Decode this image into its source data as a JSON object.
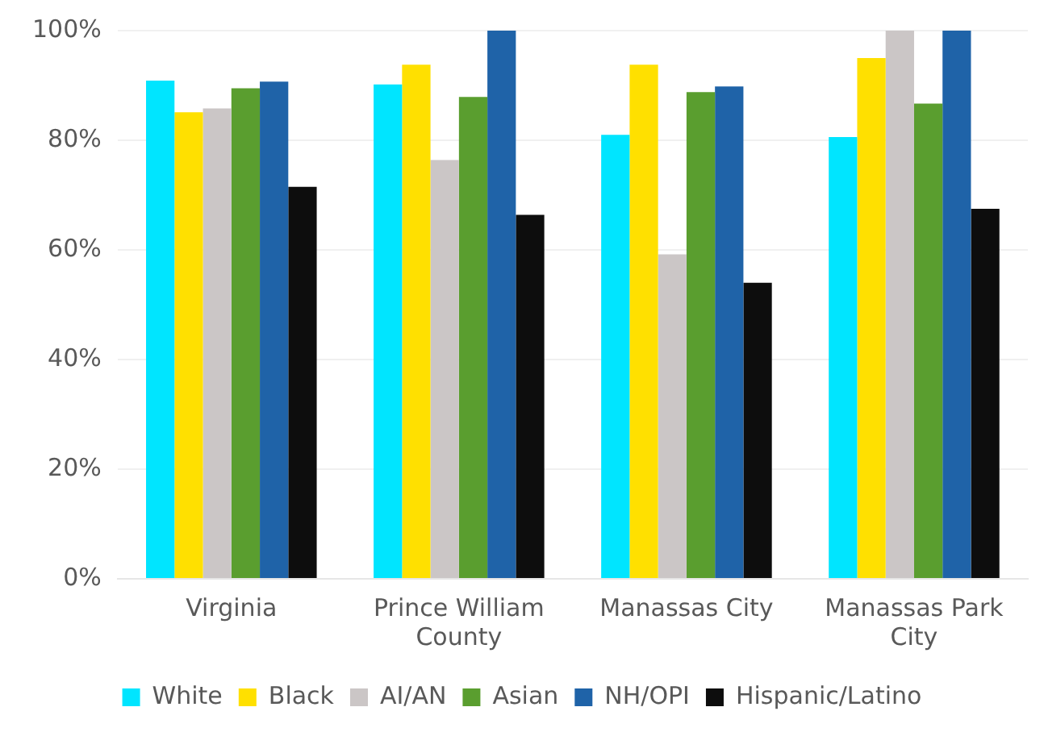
{
  "chart_data": {
    "type": "bar",
    "categories": [
      "Virginia",
      "Prince William County",
      "Manassas City",
      "Manassas Park City"
    ],
    "series": [
      {
        "name": "White",
        "color": "#00e5ff",
        "values": [
          90.9,
          90.2,
          81.0,
          80.6
        ]
      },
      {
        "name": "Black",
        "color": "#ffe000",
        "values": [
          85.1,
          93.8,
          93.8,
          95.0
        ]
      },
      {
        "name": "AI/AN",
        "color": "#cbc6c6",
        "values": [
          85.8,
          76.4,
          59.2,
          100
        ]
      },
      {
        "name": "Asian",
        "color": "#5a9e2f",
        "values": [
          89.5,
          87.9,
          88.8,
          86.7
        ]
      },
      {
        "name": "NH/OPI",
        "color": "#1f63a8",
        "values": [
          90.7,
          100,
          89.8,
          100
        ]
      },
      {
        "name": "Hispanic/Latino",
        "color": "#0d0d0d",
        "values": [
          71.5,
          66.4,
          54.0,
          67.5
        ]
      }
    ],
    "ylim": [
      0,
      100
    ],
    "yticks": [
      {
        "value": 0,
        "label": "0%"
      },
      {
        "value": 20,
        "label": "20%"
      },
      {
        "value": 40,
        "label": "40%"
      },
      {
        "value": 60,
        "label": "60%"
      },
      {
        "value": 80,
        "label": "80%"
      },
      {
        "value": 100,
        "label": "100%"
      }
    ],
    "grid": "y",
    "legend": "bottom"
  }
}
